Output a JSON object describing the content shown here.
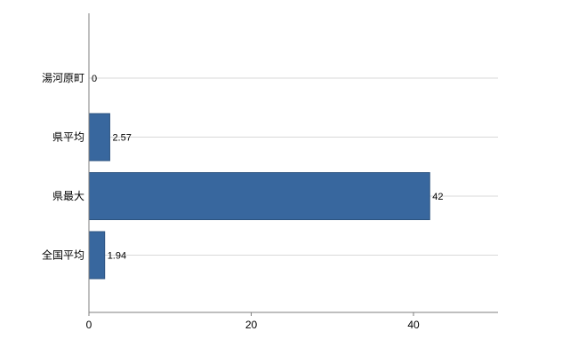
{
  "chart_data": {
    "type": "bar",
    "orientation": "horizontal",
    "title": "",
    "xlabel": "",
    "ylabel": "",
    "categories": [
      "湯河原町",
      "県平均",
      "県最大",
      "全国平均"
    ],
    "values": [
      0,
      2.57,
      42,
      1.94
    ],
    "value_labels": [
      "0",
      "2.57",
      "42",
      "1.94"
    ],
    "xticks": [
      0,
      20,
      40
    ],
    "xtick_labels": [
      "0",
      "20",
      "40"
    ],
    "xlim": [
      0,
      50.4
    ],
    "grid": "horizontal-per-category",
    "legend_position": "none",
    "colors": {
      "bar_fill": "#38679E",
      "bar_stroke": "#2C5380",
      "gridline": "#d9d9d9",
      "axis": "#7f7f7f",
      "text": "#000000",
      "background": "#ffffff"
    }
  }
}
